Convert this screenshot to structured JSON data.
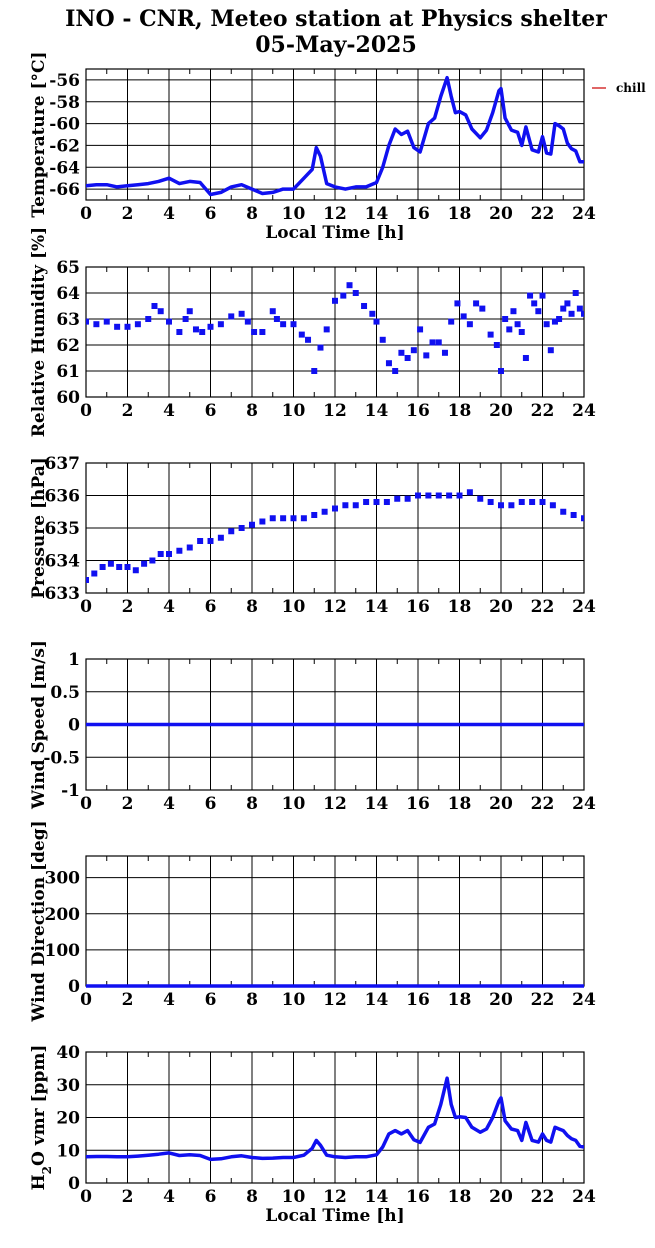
{
  "title_line1": "INO - CNR, Meteo station at Physics shelter",
  "title_line2": "05-May-2025",
  "x_axis_label": "Local Time [h]",
  "x_ticks": [
    "0",
    "2",
    "4",
    "6",
    "8",
    "10",
    "12",
    "14",
    "16",
    "18",
    "20",
    "22",
    "24"
  ],
  "colors": {
    "series": "#1010f0",
    "chill": "#cc0000",
    "axes": "#000000"
  },
  "chart_data": [
    {
      "type": "line",
      "id": "temperature",
      "ylabel": "Temperature [°C]",
      "ylim": [
        -67,
        -55
      ],
      "yticks": [
        -66,
        -64,
        -62,
        -60,
        -58,
        -56
      ],
      "xlabel": "Local Time [h]",
      "xlim": [
        0,
        24
      ],
      "legend": {
        "entries": [
          "chill"
        ],
        "placement": "right"
      },
      "grid": true,
      "series": [
        {
          "name": "chill",
          "x": [
            0,
            0.5,
            1,
            1.5,
            2,
            2.5,
            3,
            3.5,
            4,
            4.5,
            5,
            5.5,
            6,
            6.5,
            7,
            7.5,
            8,
            8.5,
            9,
            9.5,
            10,
            10.5,
            10.9,
            11.1,
            11.3,
            11.6,
            12,
            12.5,
            13,
            13.5,
            14,
            14.3,
            14.6,
            14.9,
            15.2,
            15.5,
            15.8,
            16.1,
            16.5,
            16.8,
            17.1,
            17.4,
            17.6,
            17.8,
            18,
            18.3,
            18.6,
            19,
            19.3,
            19.6,
            19.9,
            20,
            20.2,
            20.5,
            20.8,
            21,
            21.2,
            21.5,
            21.8,
            22,
            22.2,
            22.4,
            22.6,
            22.8,
            23,
            23.2,
            23.4,
            23.6,
            23.8,
            24
          ],
          "values": [
            -65.7,
            -65.6,
            -65.6,
            -65.8,
            -65.7,
            -65.6,
            -65.5,
            -65.3,
            -65,
            -65.5,
            -65.3,
            -65.4,
            -66.5,
            -66.3,
            -65.8,
            -65.6,
            -66,
            -66.4,
            -66.3,
            -66,
            -66,
            -65,
            -64.2,
            -62.2,
            -63,
            -65.5,
            -65.8,
            -66,
            -65.8,
            -65.8,
            -65.4,
            -64,
            -62,
            -60.5,
            -61,
            -60.7,
            -62.2,
            -62.6,
            -60,
            -59.5,
            -57.5,
            -55.8,
            -57.5,
            -59,
            -58.9,
            -59.2,
            -60.5,
            -61.3,
            -60.6,
            -59,
            -57,
            -56.8,
            -59.5,
            -60.6,
            -60.8,
            -62,
            -60.3,
            -62.4,
            -62.6,
            -61.2,
            -62.7,
            -62.8,
            -60,
            -60.2,
            -60.5,
            -61.8,
            -62.3,
            -62.5,
            -63.5,
            -63.5
          ]
        },
        {
          "name": "",
          "x": [
            0,
            0.5,
            1,
            1.5,
            2,
            2.5,
            3,
            3.5,
            4,
            4.5,
            5,
            5.5,
            6,
            6.5,
            7,
            7.5,
            8,
            8.5,
            9,
            9.5,
            10,
            10.5,
            10.9,
            11.1,
            11.3,
            11.6,
            12,
            12.5,
            13,
            13.5,
            14,
            14.3,
            14.6,
            14.9,
            15.2,
            15.5,
            15.8,
            16.1,
            16.5,
            16.8,
            17.1,
            17.4,
            17.6,
            17.8,
            18,
            18.3,
            18.6,
            19,
            19.3,
            19.6,
            19.9,
            20,
            20.2,
            20.5,
            20.8,
            21,
            21.2,
            21.5,
            21.8,
            22,
            22.2,
            22.4,
            22.6,
            22.8,
            23,
            23.2,
            23.4,
            23.6,
            23.8,
            24
          ],
          "values": [
            -65.7,
            -65.6,
            -65.6,
            -65.8,
            -65.7,
            -65.6,
            -65.5,
            -65.3,
            -65,
            -65.5,
            -65.3,
            -65.4,
            -66.5,
            -66.3,
            -65.8,
            -65.6,
            -66,
            -66.4,
            -66.3,
            -66,
            -66,
            -65,
            -64.2,
            -62.2,
            -63,
            -65.5,
            -65.8,
            -66,
            -65.8,
            -65.8,
            -65.4,
            -64,
            -62,
            -60.5,
            -61,
            -60.7,
            -62.2,
            -62.6,
            -60,
            -59.5,
            -57.5,
            -55.8,
            -57.5,
            -59,
            -58.9,
            -59.2,
            -60.5,
            -61.3,
            -60.6,
            -59,
            -57,
            -56.8,
            -59.5,
            -60.6,
            -60.8,
            -62,
            -60.3,
            -62.4,
            -62.6,
            -61.2,
            -62.7,
            -62.8,
            -60,
            -60.2,
            -60.5,
            -61.8,
            -62.3,
            -62.5,
            -63.5,
            -63.5
          ]
        }
      ]
    },
    {
      "type": "scatter",
      "id": "humidity",
      "ylabel": "Relative Humidity [%]",
      "ylim": [
        60,
        65
      ],
      "yticks": [
        60,
        61,
        62,
        63,
        64,
        65
      ],
      "xlim": [
        0,
        24
      ],
      "grid": true,
      "series": [
        {
          "x": [
            0,
            0.5,
            1,
            1.5,
            2,
            2.5,
            3,
            3.3,
            3.6,
            4,
            4.5,
            4.8,
            5,
            5.3,
            5.6,
            6,
            6.5,
            7,
            7.5,
            7.8,
            8.1,
            8.5,
            9,
            9.2,
            9.5,
            10,
            10.4,
            10.7,
            11,
            11.3,
            11.6,
            12,
            12.4,
            12.7,
            13,
            13.4,
            13.8,
            14,
            14.3,
            14.6,
            14.9,
            15.2,
            15.5,
            15.8,
            16.1,
            16.4,
            16.7,
            17,
            17.3,
            17.6,
            17.9,
            18.2,
            18.5,
            18.8,
            19.1,
            19.5,
            19.8,
            20,
            20.2,
            20.4,
            20.6,
            20.8,
            21,
            21.2,
            21.4,
            21.6,
            21.8,
            22,
            22.2,
            22.4,
            22.6,
            22.8,
            23,
            23.2,
            23.4,
            23.6,
            23.8,
            24
          ],
          "values": [
            62.9,
            62.8,
            62.9,
            62.7,
            62.7,
            62.8,
            63,
            63.5,
            63.3,
            62.9,
            62.5,
            63,
            63.3,
            62.6,
            62.5,
            62.7,
            62.8,
            63.1,
            63.2,
            62.9,
            62.5,
            62.5,
            63.3,
            63,
            62.8,
            62.8,
            62.4,
            62.2,
            61,
            61.9,
            62.6,
            63.7,
            63.9,
            64.3,
            64,
            63.5,
            63.2,
            62.9,
            62.2,
            61.3,
            61,
            61.7,
            61.5,
            61.8,
            62.6,
            61.6,
            62.1,
            62.1,
            61.7,
            62.9,
            63.6,
            63.1,
            62.8,
            63.6,
            63.4,
            62.4,
            62,
            61,
            63,
            62.6,
            63.3,
            62.8,
            62.5,
            61.5,
            63.9,
            63.6,
            63.3,
            63.9,
            62.8,
            61.8,
            62.9,
            63,
            63.4,
            63.6,
            63.2,
            64,
            63.4,
            63.2
          ]
        }
      ]
    },
    {
      "type": "scatter",
      "id": "pressure",
      "ylabel": "Pressure [hPa]",
      "ylim": [
        633,
        637
      ],
      "yticks": [
        633,
        634,
        635,
        636,
        637
      ],
      "xlim": [
        0,
        24
      ],
      "grid": true,
      "series": [
        {
          "x": [
            0,
            0.4,
            0.8,
            1.2,
            1.6,
            2,
            2.4,
            2.8,
            3.2,
            3.6,
            4,
            4.5,
            5,
            5.5,
            6,
            6.5,
            7,
            7.5,
            8,
            8.5,
            9,
            9.5,
            10,
            10.5,
            11,
            11.5,
            12,
            12.5,
            13,
            13.5,
            14,
            14.5,
            15,
            15.5,
            16,
            16.5,
            17,
            17.5,
            18,
            18.5,
            19,
            19.5,
            20,
            20.5,
            21,
            21.5,
            22,
            22.5,
            23,
            23.5,
            24
          ],
          "values": [
            633.4,
            633.6,
            633.8,
            633.9,
            633.8,
            633.8,
            633.7,
            633.9,
            634,
            634.2,
            634.2,
            634.3,
            634.4,
            634.6,
            634.6,
            634.7,
            634.9,
            635,
            635.1,
            635.2,
            635.3,
            635.3,
            635.3,
            635.3,
            635.4,
            635.5,
            635.6,
            635.7,
            635.7,
            635.8,
            635.8,
            635.8,
            635.9,
            635.9,
            636,
            636,
            636,
            636,
            636,
            636.1,
            635.9,
            635.8,
            635.7,
            635.7,
            635.8,
            635.8,
            635.8,
            635.7,
            635.5,
            635.4,
            635.3
          ]
        }
      ]
    },
    {
      "type": "line",
      "id": "wind_speed",
      "ylabel": "Wind Speed [m/s]",
      "ylim": [
        -1,
        1
      ],
      "yticks": [
        -1,
        -0.5,
        0,
        0.5,
        1
      ],
      "ytick_labels": [
        "-1",
        "-0.5",
        "0",
        "0.5",
        "1"
      ],
      "xlim": [
        0,
        24
      ],
      "grid": true,
      "series": [
        {
          "x": [
            0,
            24
          ],
          "values": [
            0,
            0
          ]
        }
      ]
    },
    {
      "type": "line",
      "id": "wind_direction",
      "ylabel": "Wind Direction [deg]",
      "ylim": [
        0,
        360
      ],
      "yticks": [
        0,
        100,
        200,
        300
      ],
      "xlim": [
        0,
        24
      ],
      "grid": true,
      "series": [
        {
          "x": [
            0,
            24
          ],
          "values": [
            0,
            0
          ]
        }
      ]
    },
    {
      "type": "line",
      "id": "h2o",
      "ylabel": "H2O vmr [ppm]",
      "ylabel_parts": {
        "main": "H",
        "sub": "2",
        "rest": "O vmr [ppm]"
      },
      "ylim": [
        0,
        40
      ],
      "yticks": [
        0,
        10,
        20,
        30,
        40
      ],
      "xlabel": "Local Time [h]",
      "xlim": [
        0,
        24
      ],
      "grid": true,
      "series": [
        {
          "x": [
            0,
            0.5,
            1,
            1.5,
            2,
            2.5,
            3,
            3.5,
            4,
            4.5,
            5,
            5.5,
            6,
            6.5,
            7,
            7.5,
            8,
            8.5,
            9,
            9.5,
            10,
            10.5,
            10.9,
            11.1,
            11.3,
            11.6,
            12,
            12.5,
            13,
            13.5,
            14,
            14.3,
            14.6,
            14.9,
            15.2,
            15.5,
            15.8,
            16.1,
            16.5,
            16.8,
            17.1,
            17.4,
            17.6,
            17.8,
            18,
            18.3,
            18.6,
            19,
            19.3,
            19.6,
            19.9,
            20,
            20.2,
            20.5,
            20.8,
            21,
            21.2,
            21.5,
            21.8,
            22,
            22.2,
            22.4,
            22.6,
            22.8,
            23,
            23.2,
            23.4,
            23.6,
            23.8,
            24
          ],
          "values": [
            8,
            8.1,
            8.1,
            8,
            8,
            8.2,
            8.5,
            8.8,
            9.2,
            8.4,
            8.6,
            8.4,
            7.2,
            7.4,
            8,
            8.3,
            7.8,
            7.5,
            7.6,
            7.8,
            7.8,
            8.5,
            10.6,
            13,
            11.5,
            8.5,
            8,
            7.8,
            8,
            8,
            8.6,
            11,
            15,
            16,
            15,
            16,
            13.2,
            12.4,
            17,
            18,
            24,
            32,
            24,
            20,
            20.2,
            20,
            17,
            15.5,
            16.5,
            20,
            25,
            26,
            19,
            16.5,
            16,
            13,
            18.5,
            13,
            12.5,
            15,
            13,
            12.5,
            17,
            16.5,
            16,
            14.5,
            13.5,
            13,
            11.2,
            11
          ]
        }
      ]
    }
  ]
}
